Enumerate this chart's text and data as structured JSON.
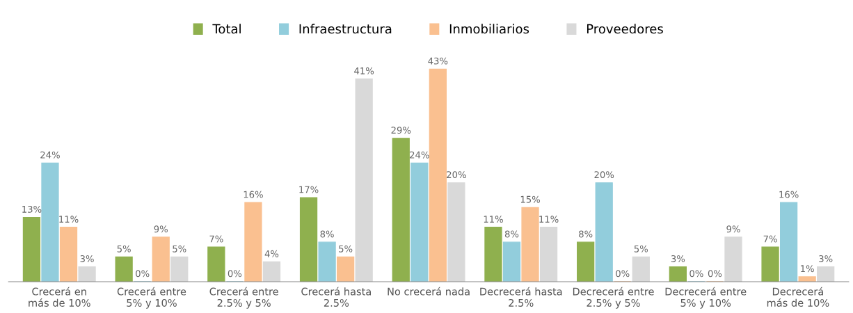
{
  "chart_data": {
    "type": "bar",
    "categories": [
      "Crecerá en\nmás de 10%",
      "Crecerá entre\n5% y 10%",
      "Crecerá entre\n2.5% y 5%",
      "Crecerá hasta\n2.5%",
      "No crecerá nada",
      "Decrecerá hasta\n2.5%",
      "Decrecerá entre\n2.5% y 5%",
      "Decrecerá entre\n5% y 10%",
      "Decrecerá\nmás de 10%"
    ],
    "series": [
      {
        "name": "Total",
        "color": "#8fb04e",
        "values": [
          13,
          5,
          7,
          17,
          29,
          11,
          8,
          3,
          7
        ],
        "value_labels": [
          "13%",
          "5%",
          "7%",
          "17%",
          "29%",
          "11%",
          "8%",
          "3%",
          "7%"
        ]
      },
      {
        "name": "Infraestructura",
        "color": "#92cddc",
        "values": [
          24,
          0,
          0,
          8,
          24,
          8,
          20,
          0,
          16
        ],
        "value_labels": [
          "24%",
          "0%",
          "0%",
          "8%",
          "24%",
          "8%",
          "20%",
          "0%",
          "16%"
        ]
      },
      {
        "name": "Inmobiliarios",
        "color": "#fac090",
        "values": [
          11,
          9,
          16,
          5,
          43,
          15,
          0,
          0,
          1
        ],
        "value_labels": [
          "11%",
          "9%",
          "16%",
          "5%",
          "43%",
          "15%",
          "0%",
          "0%",
          "1%"
        ]
      },
      {
        "name": "Proveedores",
        "color": "#d9d9d9",
        "values": [
          3,
          5,
          4,
          41,
          20,
          11,
          5,
          9,
          3
        ],
        "value_labels": [
          "3%",
          "5%",
          "4%",
          "41%",
          "20%",
          "11%",
          "5%",
          "9%",
          "3%"
        ]
      }
    ],
    "legend": "top",
    "grid": false
  }
}
